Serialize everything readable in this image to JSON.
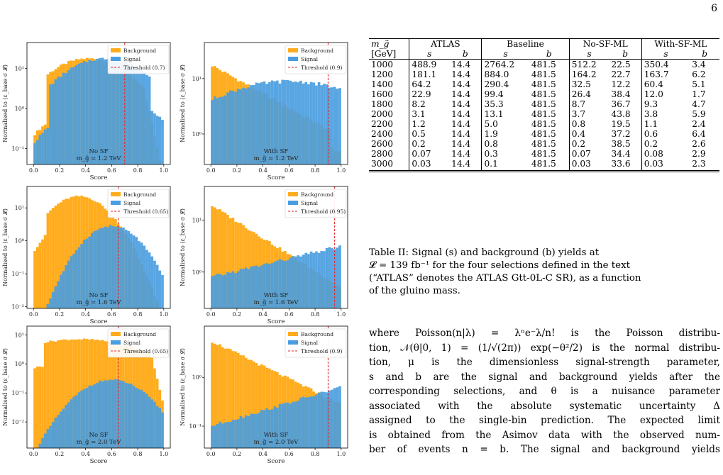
{
  "page_number": "6",
  "figure": {
    "xlabel": "Score",
    "ylabel": "Normalised to (ε_base σ 𝓛)",
    "xticks": [
      "0.0",
      "0.2",
      "0.4",
      "0.6",
      "0.8",
      "1.0"
    ],
    "legend": {
      "background": "Background",
      "signal": "Signal"
    },
    "colors": {
      "background": "#FFAC1E",
      "signal": "#4A9DE0",
      "threshold": "#E2272D"
    },
    "panels": [
      {
        "id": "p1",
        "sf": "No SF",
        "mass": "m_g̃ = 1.2 TeV",
        "threshold": 0.7,
        "threshold_label": "Threshold (0.7)",
        "ylog": [
          -1.4,
          1.65
        ],
        "yticks": [
          {
            "label": "10¹",
            "v": 1
          },
          {
            "label": "10⁰",
            "v": 0
          },
          {
            "label": "10⁻¹",
            "v": -1
          }
        ]
      },
      {
        "id": "p2",
        "sf": "With SF",
        "mass": "m_g̃ = 1.2 TeV",
        "threshold": 0.9,
        "threshold_label": "Threshold (0.9)",
        "ylog": [
          -0.55,
          1.65
        ],
        "yticks": [
          {
            "label": "10¹",
            "v": 1
          },
          {
            "label": "10⁰",
            "v": 0
          }
        ]
      },
      {
        "id": "p3",
        "sf": "No SF",
        "mass": "m_g̃ = 1.6 TeV",
        "threshold": 0.65,
        "threshold_label": "Threshold (0.65)",
        "ylog": [
          -2.05,
          1.65
        ],
        "yticks": [
          {
            "label": "10¹",
            "v": 1
          },
          {
            "label": "10⁰",
            "v": 0
          },
          {
            "label": "10⁻¹",
            "v": -1
          },
          {
            "label": "10⁻²",
            "v": -2
          }
        ]
      },
      {
        "id": "p4",
        "sf": "With SF",
        "mass": "m_g̃ = 1.6 TeV",
        "threshold": 0.95,
        "threshold_label": "Threshold (0.95)",
        "ylog": [
          -0.7,
          1.65
        ],
        "yticks": [
          {
            "label": "10¹",
            "v": 1
          },
          {
            "label": "10⁰",
            "v": 0
          }
        ]
      },
      {
        "id": "p5",
        "sf": "No SF",
        "mass": "m_g̃ = 2.0 TeV",
        "threshold": 0.65,
        "threshold_label": "Threshold (0.65)",
        "ylog": [
          -2.9,
          1.3
        ],
        "yticks": [
          {
            "label": "10¹",
            "v": 1
          },
          {
            "label": "10⁰",
            "v": 0
          },
          {
            "label": "10⁻¹",
            "v": -1
          },
          {
            "label": "10⁻²",
            "v": -2
          }
        ]
      },
      {
        "id": "p6",
        "sf": "With SF",
        "mass": "m_g̃ = 2.0 TeV",
        "threshold": 0.9,
        "threshold_label": "Threshold (0.9)",
        "ylog": [
          -1.45,
          1.05
        ],
        "yticks": [
          {
            "label": "10⁰",
            "v": 0
          },
          {
            "label": "10⁻¹",
            "v": -1
          }
        ]
      }
    ]
  },
  "table": {
    "header_mass": "m_g̃",
    "header_unit": "[GeV]",
    "groups": [
      "ATLAS",
      "Baseline",
      "No-SF-ML",
      "With-SF-ML"
    ],
    "sub": [
      "s",
      "b"
    ],
    "rows": [
      [
        "1000",
        "488.9",
        "14.4",
        "2764.2",
        "481.5",
        "512.2",
        "22.5",
        "350.4",
        "3.4"
      ],
      [
        "1200",
        "181.1",
        "14.4",
        "884.0",
        "481.5",
        "164.2",
        "22.7",
        "163.7",
        "6.2"
      ],
      [
        "1400",
        "64.2",
        "14.4",
        "290.4",
        "481.5",
        "32.5",
        "12.2",
        "60.4",
        "5.1"
      ],
      [
        "1600",
        "22.9",
        "14.4",
        "99.4",
        "481.5",
        "26.4",
        "38.4",
        "12.0",
        "1.7"
      ],
      [
        "1800",
        "8.2",
        "14.4",
        "35.3",
        "481.5",
        "8.7",
        "36.7",
        "9.3",
        "4.7"
      ],
      [
        "2000",
        "3.1",
        "14.4",
        "13.1",
        "481.5",
        "3.7",
        "43.8",
        "3.8",
        "5.9"
      ],
      [
        "2200",
        "1.2",
        "14.4",
        "5.0",
        "481.5",
        "0.8",
        "19.5",
        "1.1",
        "2.4"
      ],
      [
        "2400",
        "0.5",
        "14.4",
        "1.9",
        "481.5",
        "0.4",
        "37.2",
        "0.6",
        "6.4"
      ],
      [
        "2600",
        "0.2",
        "14.4",
        "0.8",
        "481.5",
        "0.2",
        "38.5",
        "0.2",
        "2.6"
      ],
      [
        "2800",
        "0.07",
        "14.4",
        "0.3",
        "481.5",
        "0.07",
        "34.4",
        "0.08",
        "2.9"
      ],
      [
        "3000",
        "0.03",
        "14.4",
        "0.1",
        "481.5",
        "0.03",
        "33.6",
        "0.03",
        "2.3"
      ]
    ]
  },
  "caption": {
    "line1": "Table II:  Signal (s) and background (b) yields at",
    "line2": "𝓛 = 139 fb⁻¹ for the four selections defined in the text",
    "line3": "(“ATLAS” denotes the ATLAS Gtt-0L-C SR), as a function",
    "line4": "of the gluino mass."
  },
  "body": {
    "l1": "where Poisson(n|λ) = λⁿe⁻λ/n! is the Poisson distribu-",
    "l2": "tion, 𝒩(θ|0, 1) = (1/√(2π)) exp(−θ²/2) is the normal distribu-",
    "l3": "tion, μ is the dimensionless signal-strength parameter,",
    "l4": "s and b are the signal and background yields after the",
    "l5": "corresponding selections, and θ is a nuisance parameter",
    "l6": "associated with the absolute systematic uncertainty Δ",
    "l7": "assigned to the single-bin prediction. The expected limit",
    "l8": "is obtained from the Asimov data with the observed num-",
    "l9": "ber of events n = b. The signal and background yields"
  }
}
